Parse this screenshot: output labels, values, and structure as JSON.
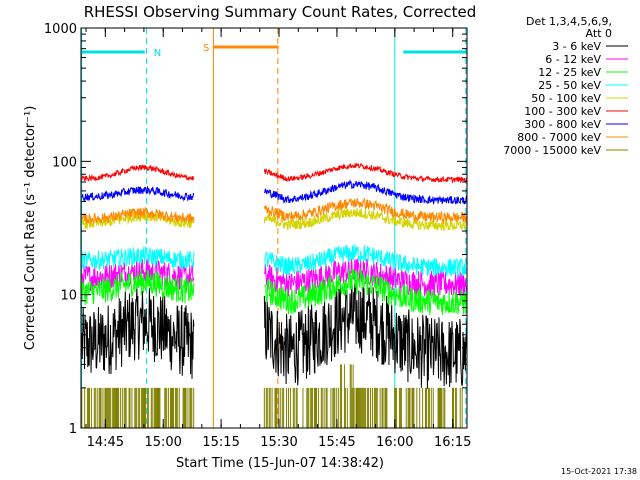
{
  "chart_data": {
    "type": "line",
    "title": "RHESSI Observing Summary Count Rates, Corrected",
    "xlabel": "Start Time (15-Jun-07 14:38:42)",
    "ylabel": "Corrected Count Rate (s⁻¹ detector⁻¹)",
    "x_unit": "minutes since start",
    "xlim": [
      0,
      100
    ],
    "ylim": [
      1,
      1000
    ],
    "y_scale": "log",
    "grid": false,
    "x_ticks": [
      {
        "value": 6.3,
        "label": "14:45"
      },
      {
        "value": 21.3,
        "label": "15:00"
      },
      {
        "value": 36.3,
        "label": "15:15"
      },
      {
        "value": 51.3,
        "label": "15:30"
      },
      {
        "value": 66.3,
        "label": "15:45"
      },
      {
        "value": 81.3,
        "label": "16:00"
      },
      {
        "value": 96.3,
        "label": "16:15"
      }
    ],
    "y_ticks": [
      {
        "value": 1,
        "label": "1"
      },
      {
        "value": 10,
        "label": "10"
      },
      {
        "value": 100,
        "label": "100"
      },
      {
        "value": 1000,
        "label": "1000"
      }
    ],
    "legend": {
      "position": "right",
      "header": [
        "Det 1,3,4,5,6,9,",
        "Att 0"
      ],
      "entries": [
        {
          "label": "3 - 6 keV",
          "color": "#000000"
        },
        {
          "label": "6 - 12 keV",
          "color": "#ff00ff"
        },
        {
          "label": "12 - 25 keV",
          "color": "#00ff00"
        },
        {
          "label": "25 - 50 keV",
          "color": "#00ffff"
        },
        {
          "label": "50 - 100 keV",
          "color": "#d4d400"
        },
        {
          "label": "100 - 300 keV",
          "color": "#ff0000"
        },
        {
          "label": "300 - 800 keV",
          "color": "#0000ff"
        },
        {
          "label": "800 - 7000 keV",
          "color": "#ff8800"
        },
        {
          "label": "7000 - 15000 keV",
          "color": "#808000"
        }
      ]
    },
    "gaps": [
      {
        "from": 29.3,
        "to": 47.5
      }
    ],
    "segments": [
      {
        "start": 0.2,
        "end": 29.3,
        "shape": "hump1"
      },
      {
        "start": 47.5,
        "end": 100,
        "shape": "hump2"
      }
    ],
    "series": [
      {
        "name": "3 - 6 keV",
        "color": "#000000",
        "base": [
          4.2,
          3.6
        ],
        "peak": [
          6.2,
          7.3
        ],
        "noise": 0.28
      },
      {
        "name": "6 - 12 keV",
        "color": "#ff00ff",
        "base": [
          13.5,
          12
        ],
        "peak": [
          15,
          15.5
        ],
        "noise": 0.1
      },
      {
        "name": "12 - 25 keV",
        "color": "#00ff00",
        "base": [
          10.5,
          8.8
        ],
        "peak": [
          12.5,
          13
        ],
        "noise": 0.1
      },
      {
        "name": "25 - 50 keV",
        "color": "#00ffff",
        "base": [
          18,
          16
        ],
        "peak": [
          19.5,
          21
        ],
        "noise": 0.07
      },
      {
        "name": "50 - 100 keV",
        "color": "#d4d400",
        "base": [
          34,
          33
        ],
        "peak": [
          39,
          42
        ],
        "noise": 0.04
      },
      {
        "name": "100 - 300 keV",
        "color": "#ff0000",
        "base": [
          74,
          73
        ],
        "peak": [
          90,
          95
        ],
        "noise": 0.02
      },
      {
        "name": "300 - 800 keV",
        "color": "#0000ff",
        "base": [
          54,
          51
        ],
        "peak": [
          61,
          69
        ],
        "noise": 0.03
      },
      {
        "name": "800 - 7000 keV",
        "color": "#ff8800",
        "base": [
          37,
          38
        ],
        "peak": [
          41,
          50
        ],
        "noise": 0.04
      },
      {
        "name": "7000 - 15000 keV",
        "color": "#808000",
        "base": [
          1,
          1
        ],
        "peak": [
          2,
          2
        ],
        "noise": 0,
        "bursty": true
      }
    ],
    "markers": {
      "saa": {
        "label": "S",
        "color": "#ff8800",
        "bar": [
          34.2,
          51.2
        ],
        "bar_value": 720
      },
      "night": {
        "label": "N",
        "color": "#00e0e0",
        "bars": [
          [
            0,
            16.5
          ],
          [
            83.5,
            100
          ]
        ],
        "bar_value": 660
      },
      "vlines": [
        {
          "x": 0.15,
          "color": "#00e0e0",
          "style": "solid"
        },
        {
          "x": 17,
          "color": "#00e0e0",
          "style": "dashed"
        },
        {
          "x": 34.3,
          "color": "#ff8800",
          "style": "solid"
        },
        {
          "x": 51.0,
          "color": "#ff8800",
          "style": "dashed"
        },
        {
          "x": 81.3,
          "color": "#00e0e0",
          "style": "solid"
        },
        {
          "x": 99.7,
          "color": "#00e0e0",
          "style": "dashed"
        }
      ]
    }
  },
  "footer": {
    "datestamp": "15-Oct-2021 17:38"
  }
}
